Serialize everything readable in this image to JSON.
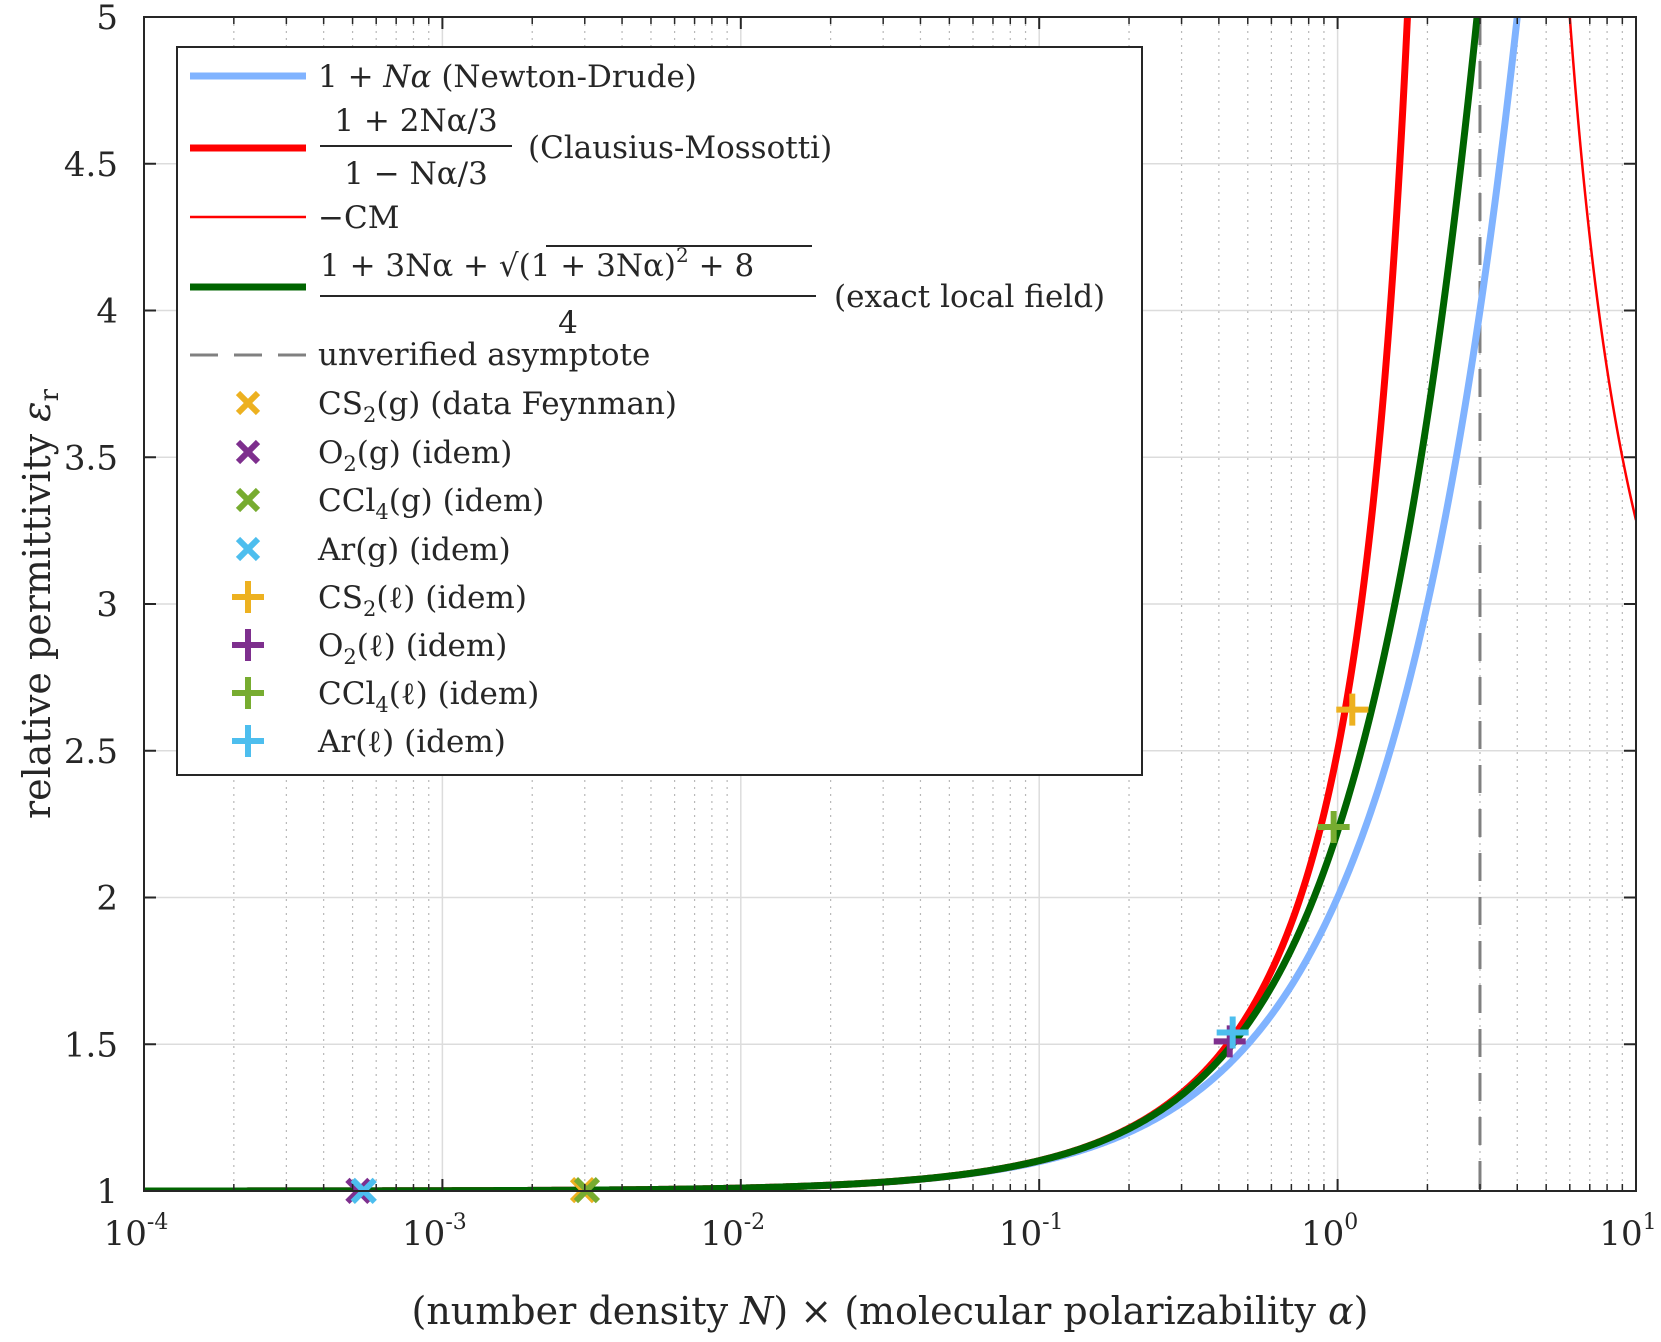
{
  "chart_data": {
    "type": "line",
    "title": "",
    "xlabel": "(number density N) × (molecular polarizability α)",
    "ylabel": "relative permittivity εr",
    "xscale": "log",
    "xlim": [
      0.0001,
      10
    ],
    "ylim": [
      1,
      5
    ],
    "grid": true,
    "legend_position": "top-left",
    "xticks": [
      {
        "base": "10",
        "exp": "-4",
        "value": 0.0001
      },
      {
        "base": "10",
        "exp": "-3",
        "value": 0.001
      },
      {
        "base": "10",
        "exp": "-2",
        "value": 0.01
      },
      {
        "base": "10",
        "exp": "-1",
        "value": 0.1
      },
      {
        "base": "10",
        "exp": "0",
        "value": 1
      },
      {
        "base": "10",
        "exp": "1",
        "value": 10
      }
    ],
    "yticks": [
      "1",
      "1.5",
      "2",
      "2.5",
      "3",
      "3.5",
      "4",
      "4.5",
      "5"
    ],
    "series": [
      {
        "id": "nd",
        "name": "1 + Nα (Newton-Drude)",
        "color": "#80b3ff",
        "width": 7,
        "formula": "1+x"
      },
      {
        "id": "cm",
        "name": "(1 + 2Nα/3) / (1 − Nα/3) (Clausius-Mossotti)",
        "color": "#ff0000",
        "width": 7,
        "formula": "(1+2x/3)/(1-x/3)",
        "domain": [
          0.0001,
          3
        ]
      },
      {
        "id": "neg",
        "name": "−CM",
        "color": "#ff0000",
        "width": 2.5,
        "formula": "-(1+2x/3)/(1-x/3)",
        "domain": [
          3,
          10
        ]
      },
      {
        "id": "ex",
        "name": "(1 + 3Nα + √((1 + 3Nα)² + 8)) / 4 (exact local field)",
        "color": "#006400",
        "width": 7,
        "formula": "exact",
        "domain": [
          0.0001,
          3
        ]
      },
      {
        "id": "asym",
        "name": "unverified asymptote",
        "color": "#808080",
        "width": 3,
        "dash": "28 16",
        "x": 3
      }
    ],
    "points": [
      {
        "name": "CS2(g) (data Feynman)",
        "marker": "x",
        "color": "#edb120",
        "x": 0.00296,
        "y": 1.0029
      },
      {
        "name": "O2(g) (idem)",
        "marker": "x",
        "color": "#7e2f8e",
        "x": 0.000523,
        "y": 1.000523
      },
      {
        "name": "CCl4(g) (idem)",
        "marker": "x",
        "color": "#77ac30",
        "x": 0.00305,
        "y": 1.003
      },
      {
        "name": "Ar(g) (idem)",
        "marker": "x",
        "color": "#4dbeee",
        "x": 0.000545,
        "y": 1.000545
      },
      {
        "name": "CS2(ℓ) (idem)",
        "marker": "+",
        "color": "#edb120",
        "x": 1.12,
        "y": 2.64
      },
      {
        "name": "O2(ℓ) (idem)",
        "marker": "+",
        "color": "#7e2f8e",
        "x": 0.435,
        "y": 1.51
      },
      {
        "name": "CCl4(ℓ) (idem)",
        "marker": "+",
        "color": "#77ac30",
        "x": 0.97,
        "y": 2.24
      },
      {
        "name": "Ar(ℓ) (idem)",
        "marker": "+",
        "color": "#4dbeee",
        "x": 0.445,
        "y": 1.54
      }
    ]
  },
  "legend": {
    "nd": {
      "a": "1 + ",
      "b": "Nα",
      "c": " (Newton-Drude)"
    },
    "cm": {
      "num": "1 + 2Nα/3",
      "den": "1 − Nα/3",
      "tail": "(Clausius-Mossotti)"
    },
    "neg": {
      "a": "−CM"
    },
    "ex": {
      "num_a": "1 + 3Nα + ",
      "num_b": "(1 + 3Nα)",
      "num_c": "2",
      "num_d": " + 8",
      "den": "4",
      "tail": "(exact local field)"
    },
    "asym": {
      "a": "unverified asymptote"
    },
    "p0": {
      "a": "CS",
      "s": "2",
      "b": "(g) (data Feynman)"
    },
    "p1": {
      "a": "O",
      "s": "2",
      "b": "(g) (idem)"
    },
    "p2": {
      "a": "CCl",
      "s": "4",
      "b": "(g) (idem)"
    },
    "p3": {
      "a": "Ar(g) (idem)"
    },
    "p4": {
      "a": "CS",
      "s": "2",
      "b": "(ℓ) (idem)"
    },
    "p5": {
      "a": "O",
      "s": "2",
      "b": "(ℓ) (idem)"
    },
    "p6": {
      "a": "CCl",
      "s": "4",
      "b": "(ℓ) (idem)"
    },
    "p7": {
      "a": "Ar(ℓ) (idem)"
    }
  },
  "axis_text": {
    "xlabel_a": "(number density ",
    "xlabel_b": "N",
    "xlabel_c": ") × (molecular polarizability ",
    "xlabel_d": "α",
    "xlabel_e": ")",
    "ylabel_a": "relative permittivity ",
    "ylabel_b": "ε",
    "ylabel_c": "r"
  }
}
